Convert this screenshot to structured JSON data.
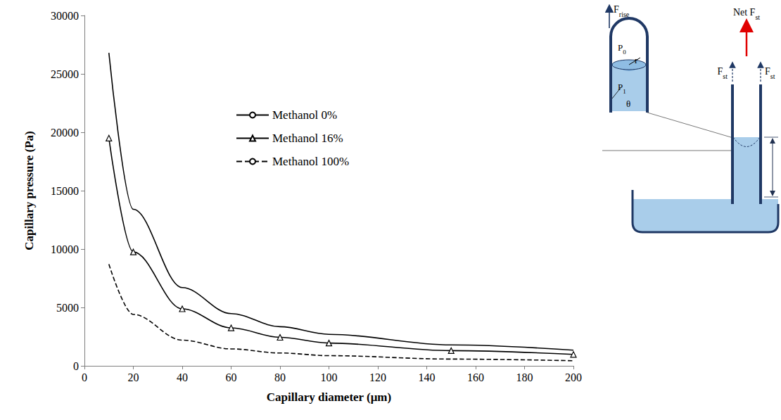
{
  "chart_data": {
    "type": "line",
    "x_label": "Capillary diameter (μm)",
    "y_label": "Capillary pressure (Pa)",
    "x": [
      10,
      20,
      40,
      60,
      80,
      100,
      150,
      200
    ],
    "series": [
      {
        "name": "Methanol 0%",
        "color": "#000000",
        "marker": "none",
        "line_style": "solid",
        "values": [
          26800,
          13400,
          6700,
          4470,
          3350,
          2700,
          1790,
          1340
        ]
      },
      {
        "name": "Methanol 16%",
        "color": "#000000",
        "marker": "triangle",
        "line_style": "solid",
        "values": [
          19500,
          9750,
          4880,
          3250,
          2440,
          1950,
          1300,
          975
        ]
      },
      {
        "name": "Methanol 100%",
        "color": "#000000",
        "marker": "none",
        "line_style": "dashed",
        "values": [
          8700,
          4400,
          2200,
          1450,
          1100,
          870,
          580,
          435
        ]
      }
    ],
    "xlim": [
      0,
      200
    ],
    "xticks": [
      0,
      20,
      40,
      60,
      80,
      100,
      120,
      140,
      160,
      180,
      200
    ],
    "ylim": [
      0,
      30000
    ],
    "yticks": [
      0,
      5000,
      10000,
      15000,
      20000,
      25000,
      30000
    ],
    "grid": false,
    "legend": "top"
  },
  "diagram": {
    "inset": {
      "force": {
        "main": "F",
        "sub": "rise"
      },
      "outer_pressure": {
        "main": "P",
        "sub": "0"
      },
      "inner_pressure": {
        "main": "P",
        "sub": "1"
      },
      "radius": "r",
      "angle": "θ"
    },
    "tube": {
      "net_force": {
        "main": "Net F",
        "sub": "st"
      },
      "wall_forces": [
        {
          "main": "F",
          "sub": "st"
        },
        {
          "main": "F",
          "sub": "st"
        }
      ]
    }
  }
}
